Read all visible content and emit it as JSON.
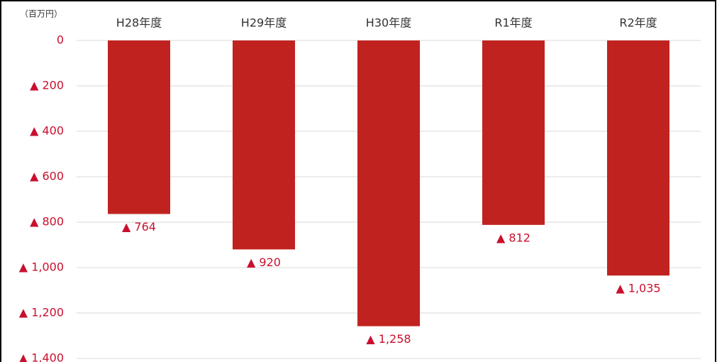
{
  "chart_data": {
    "type": "bar",
    "unit": "（百万円）",
    "categories": [
      "H28年度",
      "H29年度",
      "H30年度",
      "R1年度",
      "R2年度"
    ],
    "values": [
      -764,
      -920,
      -1258,
      -812,
      -1035
    ],
    "value_labels": [
      "▲ 764",
      "▲ 920",
      "▲ 1,258",
      "▲ 812",
      "▲ 1,035"
    ],
    "color": "#c0231f",
    "ylim": [
      -1400,
      0
    ],
    "yticks": [
      0,
      {
        "value": -200,
        "label": "▲ 200"
      },
      {
        "value": -400,
        "label": "▲ 400"
      },
      {
        "value": -600,
        "label": "▲ 600"
      },
      {
        "value": -800,
        "label": "▲ 800"
      },
      {
        "value": -1000,
        "label": "▲ 1,000"
      },
      {
        "value": -1200,
        "label": "▲ 1,200"
      },
      {
        "value": -1400,
        "label": "▲ 1,400"
      }
    ],
    "grid": true
  }
}
